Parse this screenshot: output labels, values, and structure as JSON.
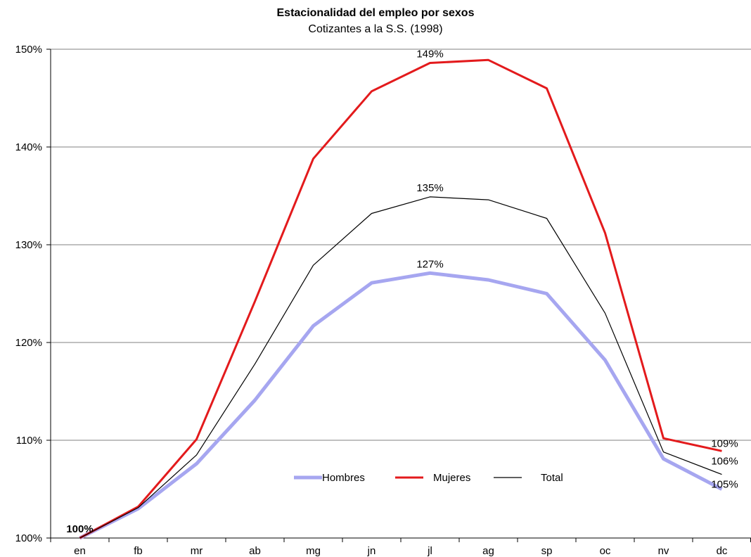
{
  "chart_data": {
    "type": "line",
    "title": "Estacionalidad del empleo por sexos",
    "subtitle": "Cotizantes a la S.S. (1998)",
    "xlabel": "",
    "ylabel": "",
    "categories": [
      "en",
      "fb",
      "mr",
      "ab",
      "mg",
      "jn",
      "jl",
      "ag",
      "sp",
      "oc",
      "nv",
      "dc"
    ],
    "y_ticks": [
      "100%",
      "110%",
      "120%",
      "130%",
      "140%",
      "150%"
    ],
    "ylim": [
      100,
      150
    ],
    "grid": true,
    "legend_position": "lower-center",
    "series": [
      {
        "name": "Hombres",
        "color": "#A6A6F0",
        "values": [
          100.0,
          103.0,
          107.6,
          114.1,
          121.7,
          126.1,
          127.1,
          126.4,
          125.0,
          118.2,
          108.1,
          105.0
        ]
      },
      {
        "name": "Mujeres",
        "color": "#E31A1C",
        "values": [
          100.0,
          103.2,
          110.1,
          124.2,
          138.8,
          145.7,
          148.6,
          148.9,
          146.0,
          131.2,
          110.2,
          108.9
        ]
      },
      {
        "name": "Total",
        "color": "#000000",
        "values": [
          100.0,
          103.1,
          108.5,
          117.8,
          127.9,
          133.2,
          134.9,
          134.6,
          132.7,
          123.0,
          108.8,
          106.5
        ]
      }
    ],
    "data_labels": [
      {
        "text": "100%",
        "category": "en",
        "value": 100.0
      },
      {
        "text": "149%",
        "category": "jl",
        "value": 148.6
      },
      {
        "text": "135%",
        "category": "jl",
        "value": 134.9
      },
      {
        "text": "127%",
        "category": "jl",
        "value": 127.1
      },
      {
        "text": "109%",
        "category": "dc",
        "value": 108.9
      },
      {
        "text": "106%",
        "category": "dc",
        "value": 106.5
      },
      {
        "text": "105%",
        "category": "dc",
        "value": 105.0
      }
    ]
  }
}
